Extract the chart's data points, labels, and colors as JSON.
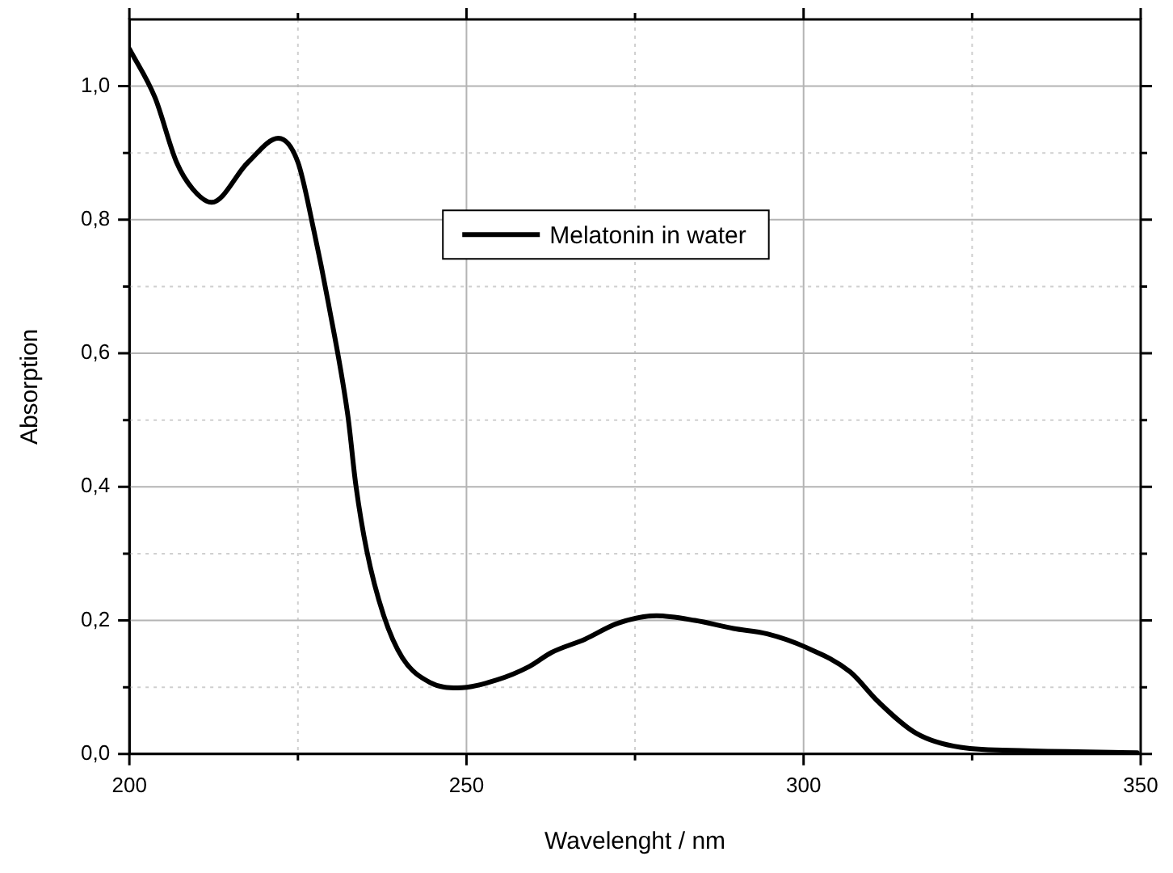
{
  "chart_data": {
    "type": "line",
    "xlabel": "Wavelenght / nm",
    "ylabel": "Absorption",
    "x": [
      200,
      203.8,
      207,
      209.4,
      212.2,
      217.6,
      222.1,
      225,
      227.4,
      229.5,
      232.4,
      233.6,
      235.2,
      237.7,
      240.5,
      244.6,
      248.7,
      254.5,
      259.3,
      262.6,
      267.6,
      272.5,
      278.2,
      283.9,
      289.6,
      294.6,
      300.3,
      306.9,
      311,
      316.7,
      323.3,
      333,
      349.5
    ],
    "series": [
      {
        "name": "Melatonin in water",
        "color": "#000000",
        "values": [
          1.056,
          0.983,
          0.886,
          0.846,
          0.826,
          0.886,
          0.922,
          0.886,
          0.782,
          0.676,
          0.507,
          0.402,
          0.305,
          0.208,
          0.144,
          0.107,
          0.099,
          0.111,
          0.131,
          0.152,
          0.172,
          0.196,
          0.207,
          0.2,
          0.188,
          0.18,
          0.16,
          0.123,
          0.079,
          0.031,
          0.01,
          0.005,
          0.002
        ]
      }
    ],
    "xlim": [
      200,
      350
    ],
    "xticks": [
      200,
      {
        "value": 225,
        "label": null
      },
      250,
      {
        "value": 275,
        "label": null
      },
      300,
      {
        "value": 325,
        "label": null
      },
      350
    ],
    "ylim": [
      0,
      1.1
    ],
    "yticks": [
      {
        "value": 0,
        "label": "0,0"
      },
      {
        "value": 0.1,
        "label": null
      },
      {
        "value": 0.2,
        "label": "0,2"
      },
      {
        "value": 0.3,
        "label": null
      },
      {
        "value": 0.4,
        "label": "0,4"
      },
      {
        "value": 0.5,
        "label": null
      },
      {
        "value": 0.6,
        "label": "0,6"
      },
      {
        "value": 0.7,
        "label": null
      },
      {
        "value": 0.8,
        "label": "0,8"
      },
      {
        "value": 0.9,
        "label": null
      },
      {
        "value": 1.0,
        "label": "1,0"
      }
    ],
    "grid": true,
    "legend": "top",
    "marker": "none",
    "line_style": "solid"
  }
}
